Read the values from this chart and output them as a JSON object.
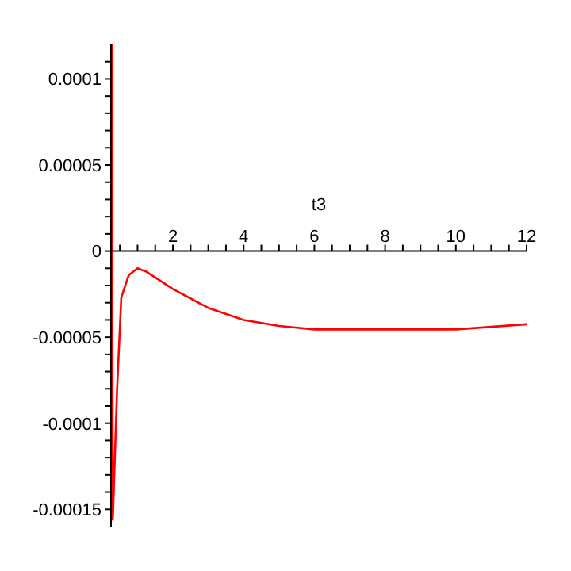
{
  "chart_data": {
    "type": "line",
    "xlabel": "t3",
    "series": [
      {
        "color": "#ff0000",
        "x": [
          0.27,
          0.3,
          0.42,
          0.54,
          0.75,
          1.0,
          1.25,
          2,
          3,
          4,
          5,
          6,
          7,
          10,
          12
        ],
        "values": [
          0.00012,
          -0.000156,
          -8.1e-05,
          -2.7e-05,
          -1.4e-05,
          -1e-05,
          -1.2e-05,
          -2.2e-05,
          -3.3e-05,
          -4e-05,
          -4.35e-05,
          -4.55e-05,
          -4.55e-05,
          -4.55e-05,
          -4.25e-05
        ]
      }
    ],
    "xlim": [
      0.25,
      12
    ],
    "xticks": [
      {
        "value": 0.5,
        "label": null
      },
      {
        "value": 1,
        "label": null
      },
      {
        "value": 1.5,
        "label": null
      },
      2,
      {
        "value": 2.5,
        "label": null
      },
      {
        "value": 3,
        "label": null
      },
      {
        "value": 3.5,
        "label": null
      },
      4,
      {
        "value": 4.5,
        "label": null
      },
      {
        "value": 5,
        "label": null
      },
      {
        "value": 5.5,
        "label": null
      },
      6,
      {
        "value": 6.5,
        "label": null
      },
      {
        "value": 7,
        "label": null
      },
      {
        "value": 7.5,
        "label": null
      },
      8,
      {
        "value": 8.5,
        "label": null
      },
      {
        "value": 9,
        "label": null
      },
      {
        "value": 9.5,
        "label": null
      },
      10,
      {
        "value": 10.5,
        "label": null
      },
      {
        "value": 11,
        "label": null
      },
      {
        "value": 11.5,
        "label": null
      },
      12
    ],
    "ylim": [
      -0.00016,
      0.00012
    ],
    "yticks": [
      {
        "value": -0.00015,
        "label": "-0.00015"
      },
      {
        "value": -0.00014,
        "label": null
      },
      {
        "value": -0.00013,
        "label": null
      },
      {
        "value": -0.00012,
        "label": null
      },
      {
        "value": -0.00011,
        "label": null
      },
      {
        "value": -0.0001,
        "label": "-0.0001"
      },
      {
        "value": -9e-05,
        "label": null
      },
      {
        "value": -8e-05,
        "label": null
      },
      {
        "value": -7e-05,
        "label": null
      },
      {
        "value": -6e-05,
        "label": null
      },
      {
        "value": -5e-05,
        "label": "-0.00005"
      },
      {
        "value": -4e-05,
        "label": null
      },
      {
        "value": -3e-05,
        "label": null
      },
      {
        "value": -2e-05,
        "label": null
      },
      {
        "value": -1e-05,
        "label": null
      },
      0,
      {
        "value": 1e-05,
        "label": null
      },
      {
        "value": 2e-05,
        "label": null
      },
      {
        "value": 3e-05,
        "label": null
      },
      {
        "value": 4e-05,
        "label": null
      },
      {
        "value": 5e-05,
        "label": "0.00005"
      },
      {
        "value": 6e-05,
        "label": null
      },
      {
        "value": 7e-05,
        "label": null
      },
      {
        "value": 8e-05,
        "label": null
      },
      {
        "value": 9e-05,
        "label": null
      },
      {
        "value": 0.0001,
        "label": "0.0001"
      },
      {
        "value": 0.00011,
        "label": null
      }
    ],
    "grid": false,
    "legend": false,
    "marker": "none",
    "line_style": "solid"
  }
}
